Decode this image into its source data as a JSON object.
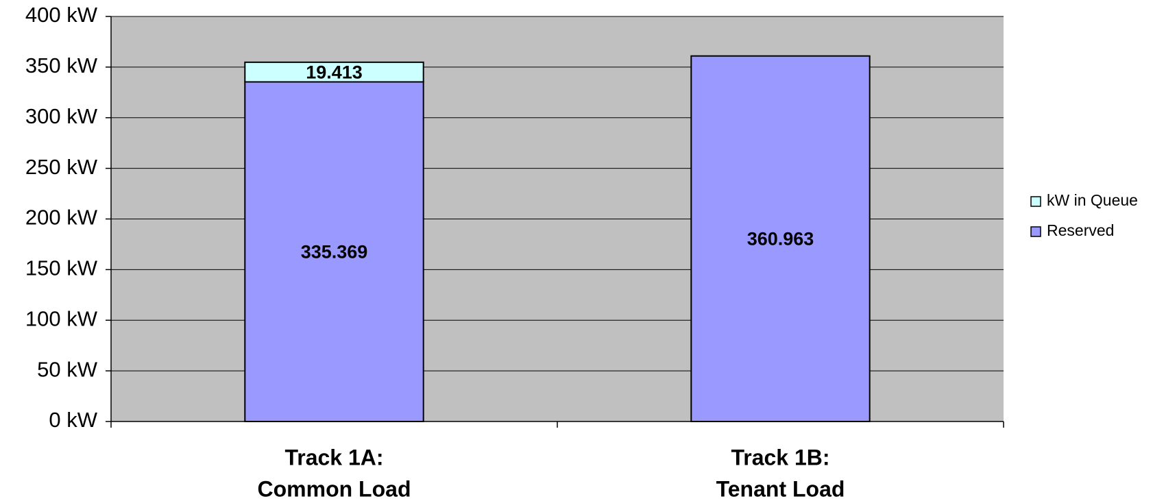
{
  "chart_data": {
    "type": "stacked_bar",
    "categories": [
      [
        "Track 1A:",
        "Common Load"
      ],
      [
        "Track 1B:",
        "Tenant Load"
      ]
    ],
    "series": [
      {
        "name": "Reserved",
        "color": "#9999ff",
        "values": [
          335.369,
          360.963
        ]
      },
      {
        "name": "kW in Queue",
        "color": "#ccffff",
        "values": [
          19.413,
          null
        ]
      }
    ],
    "ylim": [
      0,
      400
    ],
    "yticks": [
      {
        "value": 0,
        "label": "0 kW"
      },
      {
        "value": 50,
        "label": "50 kW"
      },
      {
        "value": 100,
        "label": "100 kW"
      },
      {
        "value": 150,
        "label": "150 kW"
      },
      {
        "value": 200,
        "label": "200 kW"
      },
      {
        "value": 250,
        "label": "250 kW"
      },
      {
        "value": 300,
        "label": "300 kW"
      },
      {
        "value": 350,
        "label": "350 kW"
      },
      {
        "value": 400,
        "label": "400 kW"
      }
    ],
    "grid": true,
    "plot_background": "#c0c0c0",
    "legend": "right"
  }
}
